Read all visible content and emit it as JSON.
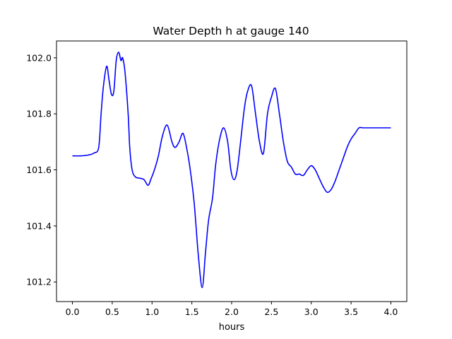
{
  "chart_data": {
    "type": "line",
    "title": "Water Depth h at gauge 140",
    "xlabel": "hours",
    "ylabel": "",
    "xlim": [
      -0.2,
      4.2
    ],
    "ylim": [
      101.13,
      102.06
    ],
    "x_ticks": [
      0.0,
      0.5,
      1.0,
      1.5,
      2.0,
      2.5,
      3.0,
      3.5,
      4.0
    ],
    "x_tick_labels": [
      "0.0",
      "0.5",
      "1.0",
      "1.5",
      "2.0",
      "2.5",
      "3.0",
      "3.5",
      "4.0"
    ],
    "y_ticks": [
      101.2,
      101.4,
      101.6,
      101.8,
      102.0
    ],
    "y_tick_labels": [
      "101.2",
      "101.4",
      "101.6",
      "101.8",
      "102.0"
    ],
    "grid": false,
    "series": [
      {
        "color": "#0000ff",
        "x": [
          0.0,
          0.1,
          0.2,
          0.27,
          0.33,
          0.36,
          0.39,
          0.43,
          0.46,
          0.49,
          0.52,
          0.55,
          0.58,
          0.61,
          0.63,
          0.66,
          0.7,
          0.72,
          0.75,
          0.79,
          0.85,
          0.9,
          0.95,
          0.99,
          1.03,
          1.08,
          1.13,
          1.19,
          1.25,
          1.29,
          1.34,
          1.39,
          1.44,
          1.48,
          1.53,
          1.58,
          1.63,
          1.67,
          1.71,
          1.76,
          1.8,
          1.85,
          1.9,
          1.95,
          1.99,
          2.03,
          2.07,
          2.12,
          2.16,
          2.2,
          2.25,
          2.3,
          2.35,
          2.4,
          2.45,
          2.5,
          2.55,
          2.6,
          2.65,
          2.7,
          2.75,
          2.8,
          2.85,
          2.9,
          2.95,
          3.0,
          3.05,
          3.1,
          3.15,
          3.2,
          3.25,
          3.3,
          3.35,
          3.4,
          3.45,
          3.5,
          3.55,
          3.6,
          3.65,
          3.7,
          3.75,
          3.8,
          3.85,
          3.9,
          3.95,
          4.0
        ],
        "y": [
          101.65,
          101.65,
          101.653,
          101.66,
          101.68,
          101.8,
          101.9,
          101.97,
          101.92,
          101.87,
          101.88,
          101.99,
          102.02,
          101.99,
          102.0,
          101.95,
          101.8,
          101.68,
          101.6,
          101.575,
          101.57,
          101.565,
          101.545,
          101.57,
          101.6,
          101.65,
          101.72,
          101.76,
          101.7,
          101.68,
          101.7,
          101.73,
          101.67,
          101.6,
          101.48,
          101.3,
          101.18,
          101.3,
          101.42,
          101.5,
          101.62,
          101.71,
          101.75,
          101.7,
          101.6,
          101.565,
          101.6,
          101.72,
          101.82,
          101.88,
          101.9,
          101.8,
          101.7,
          101.66,
          101.8,
          101.86,
          101.89,
          101.8,
          101.7,
          101.63,
          101.61,
          101.585,
          101.585,
          101.58,
          101.6,
          101.615,
          101.6,
          101.57,
          101.54,
          101.52,
          101.53,
          101.56,
          101.6,
          101.64,
          101.68,
          101.71,
          101.73,
          101.75,
          101.75,
          101.75,
          101.75,
          101.75,
          101.75,
          101.75,
          101.75,
          101.75
        ]
      }
    ]
  }
}
